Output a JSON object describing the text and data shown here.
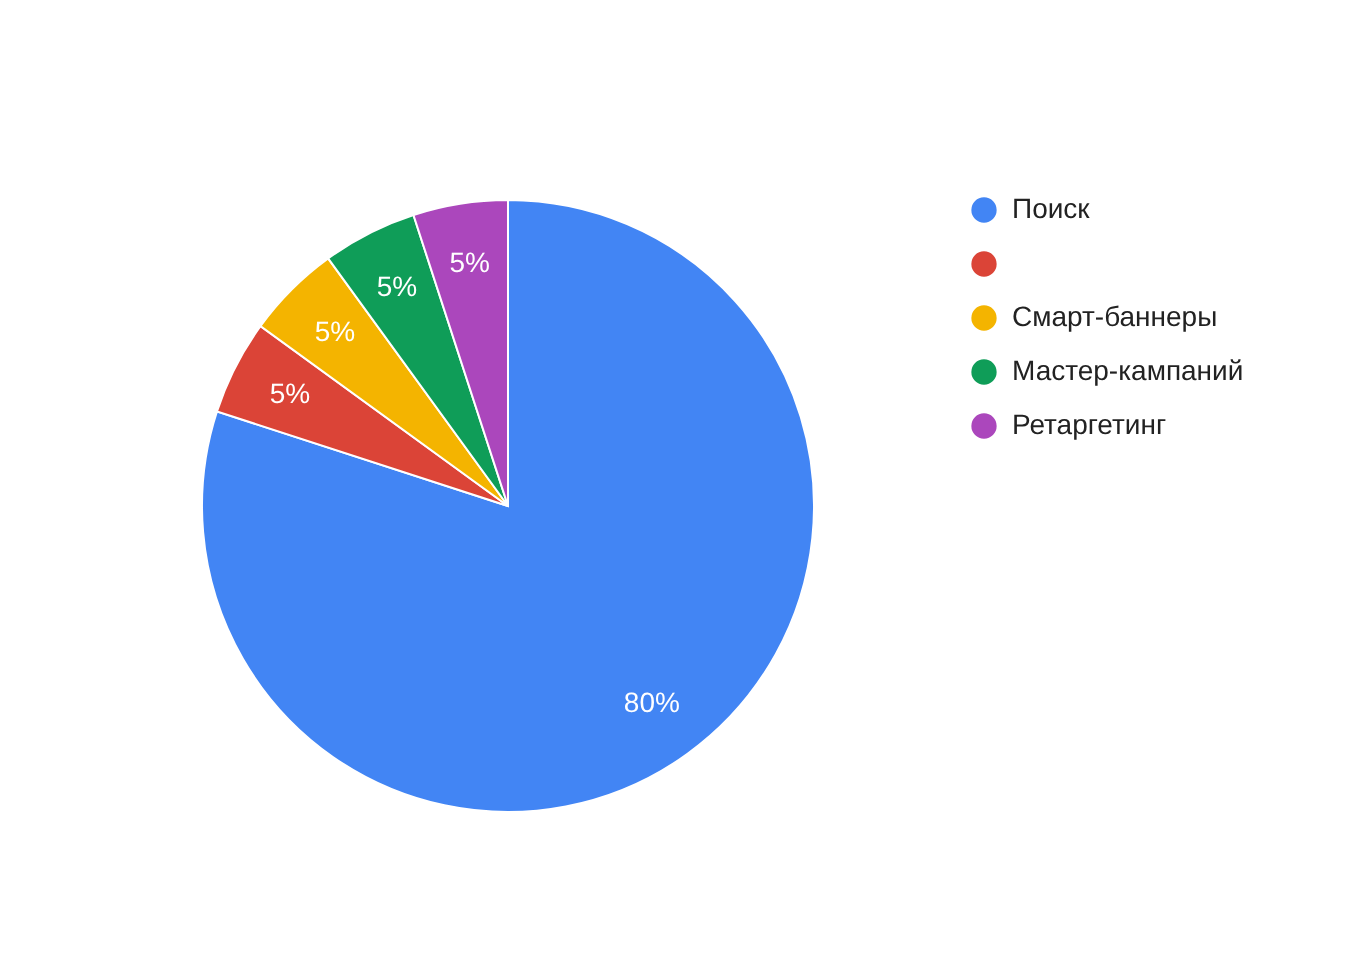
{
  "chart_data": {
    "type": "pie",
    "categories": [
      "Поиск",
      null,
      "Смарт-баннеры",
      "Мастер-кампаний",
      "Ретаргетинг"
    ],
    "values": [
      80,
      5,
      5,
      5,
      5
    ],
    "colors": [
      "#4285f4",
      "#db4437",
      "#f4b400",
      "#0f9d58",
      "#ab47bc"
    ],
    "value_labels": [
      "80%",
      "5%",
      "5%",
      "5%",
      "5%"
    ],
    "legend": "right"
  }
}
